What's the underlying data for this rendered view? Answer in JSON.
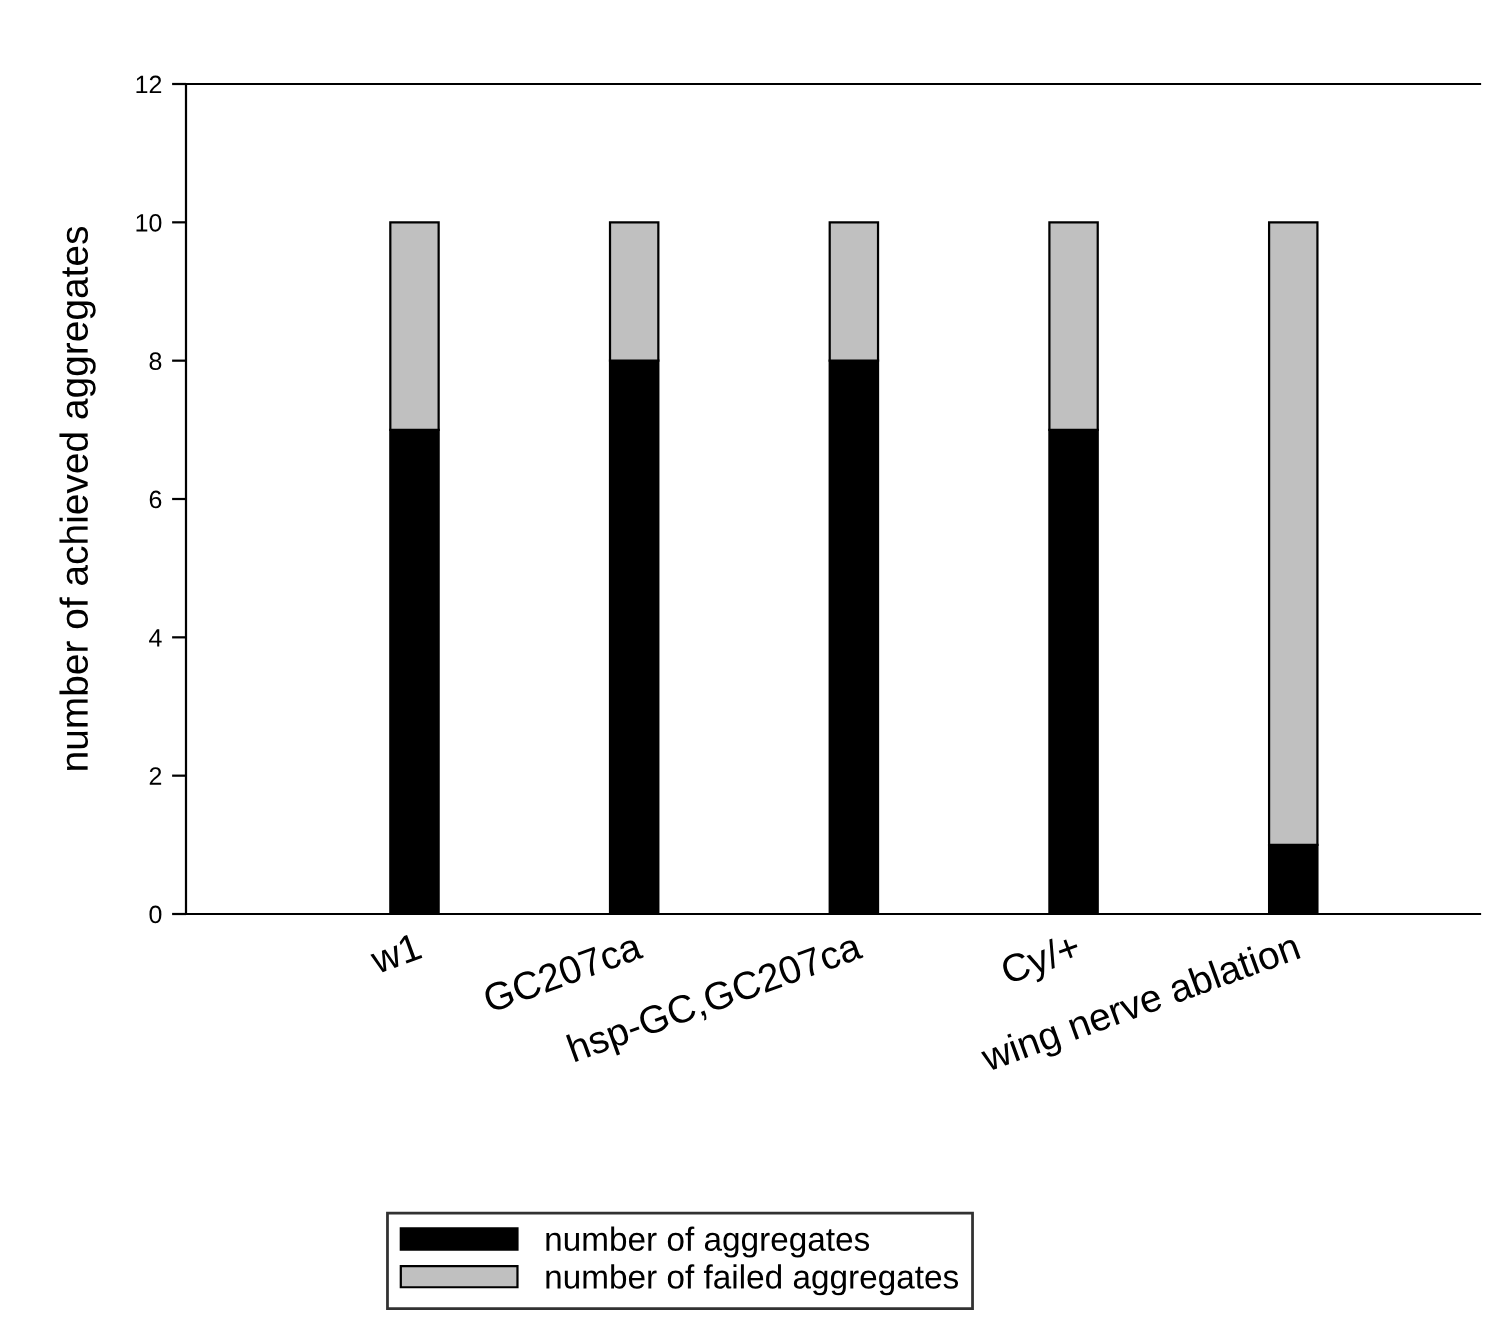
{
  "chart_data": {
    "type": "bar",
    "stacked": true,
    "ylabel": "number of achieved aggregates",
    "categories": [
      "w1",
      "GC207ca",
      "hsp-GC,GC207ca",
      "Cy/+",
      "wing nerve ablation"
    ],
    "series": [
      {
        "name": "number of aggregates",
        "color": "#000000",
        "values": [
          7,
          8,
          8,
          7,
          1
        ]
      },
      {
        "name": "number of failed aggregates",
        "color": "#c0c0c0",
        "values": [
          3,
          2,
          2,
          3,
          9
        ]
      }
    ],
    "ylim": [
      0,
      12
    ],
    "yticks": [
      0,
      2,
      4,
      6,
      8,
      10,
      12
    ],
    "grid": false,
    "legend": "bottom"
  }
}
